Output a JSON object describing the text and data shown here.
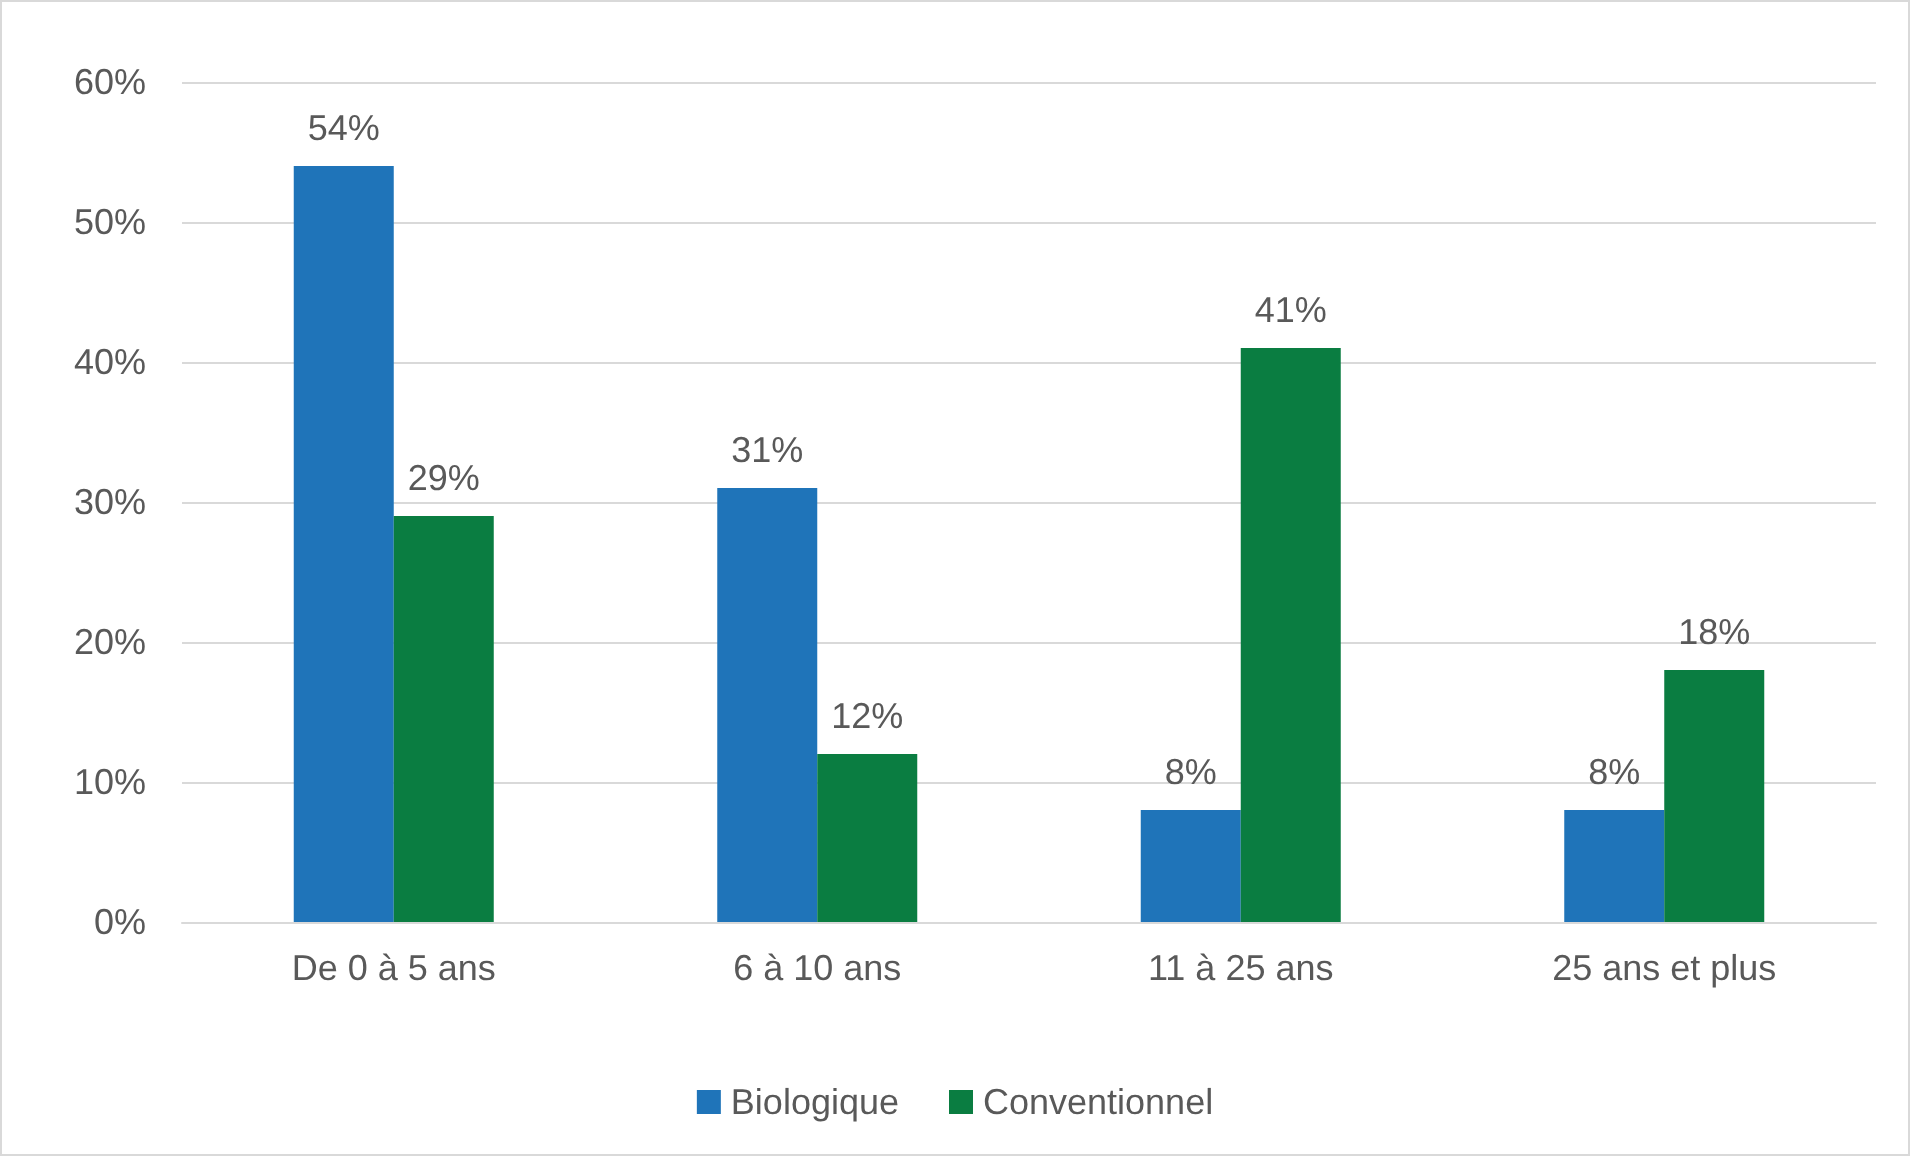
{
  "chart_data": {
    "type": "bar",
    "categories": [
      "De 0 à 5 ans",
      "6 à 10 ans",
      "11 à 25 ans",
      "25 ans et plus"
    ],
    "series": [
      {
        "name": "Biologique",
        "color": "#1f74b9",
        "values": [
          54,
          31,
          8,
          8
        ],
        "value_labels": [
          "54%",
          "31%",
          "8%",
          "8%"
        ]
      },
      {
        "name": "Conventionnel",
        "color": "#0a7d41",
        "values": [
          29,
          12,
          41,
          18
        ],
        "value_labels": [
          "29%",
          "12%",
          "41%",
          "18%"
        ]
      }
    ],
    "ylim": [
      0,
      60
    ],
    "yticks": [
      {
        "value": 0,
        "label": "0%"
      },
      {
        "value": 10,
        "label": "10%"
      },
      {
        "value": 20,
        "label": "20%"
      },
      {
        "value": 30,
        "label": "30%"
      },
      {
        "value": 40,
        "label": "40%"
      },
      {
        "value": 50,
        "label": "50%"
      },
      {
        "value": 60,
        "label": "60%"
      }
    ],
    "grid": "y",
    "legend": "bottom"
  }
}
